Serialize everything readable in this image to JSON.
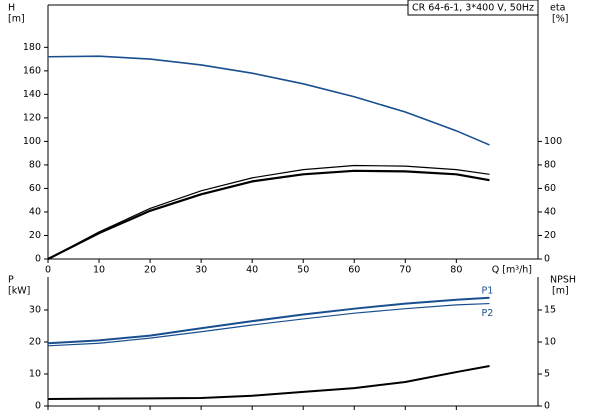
{
  "chart_data": [
    {
      "type": "line",
      "title": "CR 64-6-1, 3*400 V, 50Hz",
      "ylabel": "H",
      "yunit": "[m]",
      "y2label": "eta",
      "y2unit": "[%]",
      "xlabel": "Q [m³/h]",
      "xlim": [
        0,
        96
      ],
      "xticks": [
        0,
        10,
        20,
        30,
        40,
        50,
        60,
        70,
        80
      ],
      "xtick_labels": true,
      "ylim": [
        0,
        216
      ],
      "yticks": [
        0,
        20,
        40,
        60,
        80,
        100,
        120,
        140,
        160,
        180
      ],
      "y2lim": [
        0,
        216
      ],
      "y2ticks": [
        0,
        20,
        40,
        60,
        80,
        100
      ],
      "x": [
        0,
        10,
        20,
        30,
        40,
        50,
        60,
        70,
        80,
        86.5
      ],
      "series": [
        {
          "color": "#1a4f8f",
          "width": 1.6,
          "values": [
            172,
            172.5,
            170,
            165,
            158,
            149,
            138,
            125,
            109,
            97
          ]
        },
        {
          "color": "#000000",
          "width": 1.2,
          "axis": "y2",
          "values": [
            0,
            23,
            43,
            58,
            69,
            76,
            79.5,
            79,
            76,
            72
          ]
        },
        {
          "color": "#000000",
          "width": 2.2,
          "axis": "y2",
          "values": [
            0,
            22,
            41,
            55,
            66,
            72,
            75,
            74.5,
            72,
            67
          ]
        }
      ]
    },
    {
      "type": "line",
      "ylabel": "P",
      "yunit": "[kW]",
      "y2label": "NPSH",
      "y2unit": "[m]",
      "xlim": [
        0,
        96
      ],
      "xticks": [
        0,
        10,
        20,
        30,
        40,
        50,
        60,
        70,
        80
      ],
      "xtick_labels": false,
      "ylim": [
        0,
        40.3
      ],
      "yticks": [
        0,
        10,
        20,
        30
      ],
      "y2lim": [
        0,
        20.15
      ],
      "y2ticks": [
        0,
        5,
        10,
        15
      ],
      "x": [
        0,
        10,
        20,
        30,
        40,
        50,
        60,
        70,
        80,
        86.5
      ],
      "series": [
        {
          "name": "P1",
          "color": "#1a4f8f",
          "width": 2,
          "values": [
            19.6,
            20.5,
            22,
            24.3,
            26.5,
            28.6,
            30.4,
            32,
            33.2,
            33.8
          ]
        },
        {
          "name": "P2",
          "color": "#1a4f8f",
          "width": 1.2,
          "values": [
            18.8,
            19.6,
            21.2,
            23.2,
            25.3,
            27.2,
            29,
            30.4,
            31.6,
            32
          ]
        },
        {
          "color": "#000000",
          "width": 2,
          "axis": "y2",
          "values": [
            1.1,
            1.15,
            1.2,
            1.25,
            1.6,
            2.2,
            2.8,
            3.75,
            5.3,
            6.25
          ]
        }
      ]
    }
  ]
}
